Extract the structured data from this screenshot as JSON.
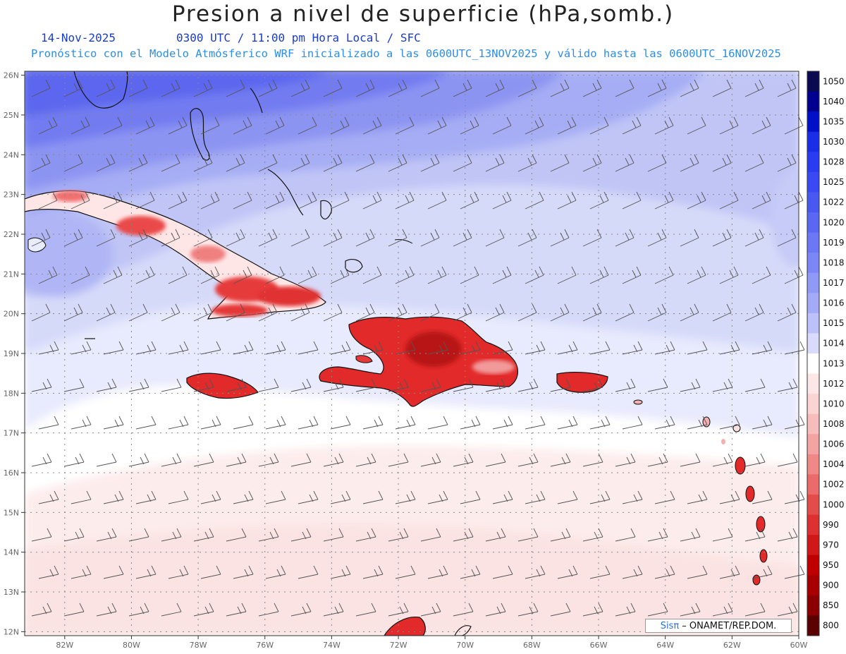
{
  "header": {
    "title": "Presion a nivel de superficie (hPa,somb.)",
    "date": "14-Nov-2025",
    "time": "0300 UTC / 11:00 pm Hora Local / SFC",
    "forecast": "Pronóstico con el Modelo Atmósferico WRF inicializado a las 0600UTC_13NOV2025 y válido hasta las  0600UTC_16NOV2025"
  },
  "map": {
    "lon_labels": [
      "82W",
      "80W",
      "78W",
      "76W",
      "74W",
      "72W",
      "70W",
      "68W",
      "66W",
      "64W",
      "62W",
      "60W"
    ],
    "lat_labels": [
      "26N",
      "25N",
      "24N",
      "23N",
      "22N",
      "21N",
      "20N",
      "19N",
      "18N",
      "17N",
      "16N",
      "15N",
      "14N",
      "13N",
      "12N"
    ],
    "high_pressure_color": "#4f55ee",
    "land_low_pressure_color": "#e02020"
  },
  "colorbar": {
    "levels": [
      "1050",
      "1040",
      "1035",
      "1030",
      "1028",
      "1025",
      "1022",
      "1020",
      "1019",
      "1018",
      "1017",
      "1016",
      "1015",
      "1014",
      "1013",
      "1012",
      "1010",
      "1008",
      "1006",
      "1004",
      "1002",
      "1000",
      "990",
      "970",
      "950",
      "900",
      "850",
      "800"
    ],
    "colors": [
      "#0a0a50",
      "#000090",
      "#0010c8",
      "#1a2ee8",
      "#2a3cf0",
      "#3a4af2",
      "#4a58f2",
      "#5a67f3",
      "#6b77f4",
      "#7c87f5",
      "#8f99f6",
      "#a3aaf8",
      "#bcc1fa",
      "#d8dbfc",
      "#ffffff",
      "#fde6e6",
      "#fad3d3",
      "#f7bcbc",
      "#f4a3a3",
      "#f08888",
      "#eb6b6b",
      "#e44c4c",
      "#dd3030",
      "#d01818",
      "#c00000",
      "#a80000",
      "#8a0000",
      "#5a0000"
    ]
  },
  "credit": {
    "brand": "Sisπ",
    "text": " – ONAMET/REP.DOM."
  }
}
